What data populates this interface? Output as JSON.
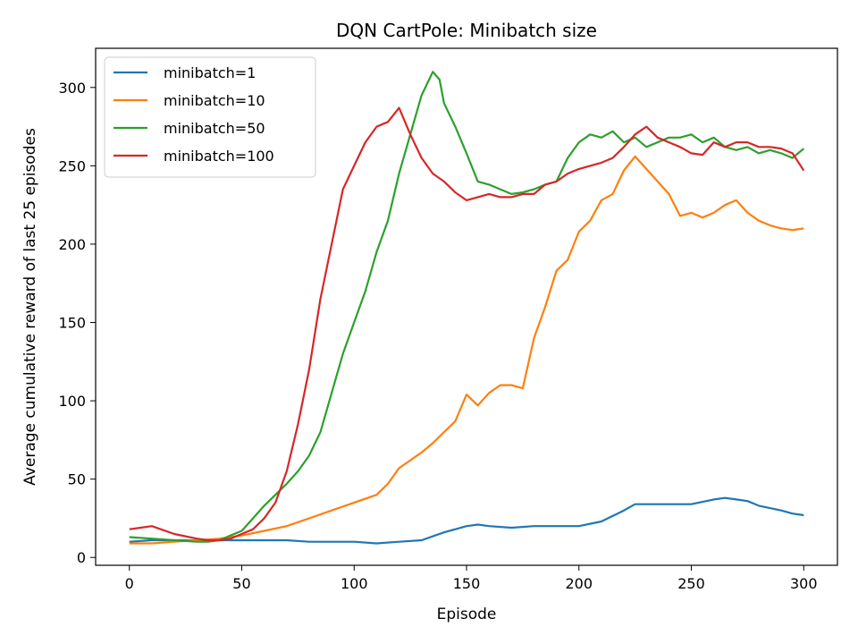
{
  "chart_data": {
    "type": "line",
    "title": "DQN CartPole: Minibatch size",
    "xlabel": "Episode",
    "ylabel": "Average cumulative reward of last 25 episodes",
    "xlim": [
      -15,
      315
    ],
    "ylim": [
      -5,
      325
    ],
    "xticks": [
      0,
      50,
      100,
      150,
      200,
      250,
      300
    ],
    "yticks": [
      0,
      50,
      100,
      150,
      200,
      250,
      300
    ],
    "grid": false,
    "legend_position": "top-left",
    "series": [
      {
        "name": "minibatch=1",
        "color": "#1f77b4",
        "x": [
          0,
          10,
          20,
          30,
          40,
          50,
          60,
          70,
          80,
          90,
          100,
          110,
          120,
          130,
          140,
          150,
          155,
          160,
          170,
          180,
          190,
          200,
          210,
          220,
          225,
          230,
          240,
          250,
          260,
          265,
          270,
          275,
          280,
          290,
          295,
          300
        ],
        "y": [
          10,
          11,
          11,
          11,
          11,
          11,
          11,
          11,
          10,
          10,
          10,
          9,
          10,
          11,
          16,
          20,
          21,
          20,
          19,
          20,
          20,
          20,
          23,
          30,
          34,
          34,
          34,
          34,
          37,
          38,
          37,
          36,
          33,
          30,
          28,
          27
        ]
      },
      {
        "name": "minibatch=10",
        "color": "#ff7f0e",
        "x": [
          0,
          10,
          20,
          30,
          40,
          50,
          60,
          70,
          80,
          90,
          100,
          110,
          115,
          120,
          125,
          130,
          135,
          140,
          145,
          150,
          155,
          160,
          165,
          170,
          175,
          180,
          185,
          190,
          195,
          200,
          205,
          210,
          215,
          220,
          225,
          230,
          235,
          240,
          245,
          250,
          255,
          260,
          265,
          270,
          275,
          280,
          285,
          290,
          295,
          300
        ],
        "y": [
          9,
          9,
          10,
          11,
          12,
          14,
          17,
          20,
          25,
          30,
          35,
          40,
          47,
          57,
          62,
          67,
          73,
          80,
          87,
          104,
          97,
          105,
          110,
          110,
          108,
          140,
          160,
          183,
          190,
          208,
          215,
          228,
          232,
          247,
          256,
          248,
          240,
          232,
          218,
          220,
          217,
          220,
          225,
          228,
          220,
          215,
          212,
          210,
          209,
          210
        ]
      },
      {
        "name": "minibatch=50",
        "color": "#2ca02c",
        "x": [
          0,
          10,
          20,
          30,
          35,
          40,
          45,
          50,
          55,
          60,
          65,
          70,
          75,
          80,
          85,
          90,
          95,
          100,
          105,
          110,
          115,
          120,
          125,
          130,
          135,
          138,
          140,
          145,
          150,
          155,
          160,
          165,
          170,
          175,
          180,
          185,
          190,
          195,
          200,
          205,
          210,
          215,
          220,
          225,
          230,
          235,
          240,
          245,
          250,
          255,
          260,
          265,
          270,
          275,
          280,
          285,
          290,
          295,
          300
        ],
        "y": [
          13,
          12,
          11,
          10,
          10,
          11,
          14,
          17,
          25,
          33,
          40,
          47,
          55,
          65,
          80,
          105,
          130,
          150,
          170,
          195,
          215,
          245,
          270,
          295,
          310,
          305,
          290,
          275,
          258,
          240,
          238,
          235,
          232,
          233,
          235,
          238,
          240,
          255,
          265,
          270,
          268,
          272,
          265,
          268,
          262,
          265,
          268,
          268,
          270,
          265,
          268,
          262,
          260,
          262,
          258,
          260,
          258,
          255,
          261
        ]
      },
      {
        "name": "minibatch=100",
        "color": "#d62728",
        "x": [
          0,
          5,
          10,
          20,
          30,
          35,
          40,
          45,
          50,
          55,
          60,
          65,
          70,
          75,
          80,
          85,
          90,
          95,
          100,
          105,
          110,
          115,
          120,
          125,
          130,
          135,
          140,
          145,
          150,
          155,
          160,
          165,
          170,
          175,
          180,
          185,
          190,
          195,
          200,
          205,
          210,
          215,
          220,
          225,
          230,
          235,
          240,
          245,
          250,
          255,
          260,
          265,
          270,
          275,
          280,
          285,
          290,
          295,
          300
        ],
        "y": [
          18,
          19,
          20,
          15,
          12,
          11,
          11,
          12,
          15,
          18,
          25,
          35,
          55,
          85,
          120,
          165,
          200,
          235,
          250,
          265,
          275,
          278,
          287,
          270,
          255,
          245,
          240,
          233,
          228,
          230,
          232,
          230,
          230,
          232,
          232,
          238,
          240,
          245,
          248,
          250,
          252,
          255,
          262,
          270,
          275,
          268,
          265,
          262,
          258,
          257,
          265,
          262,
          265,
          265,
          262,
          262,
          261,
          258,
          247
        ]
      }
    ]
  }
}
